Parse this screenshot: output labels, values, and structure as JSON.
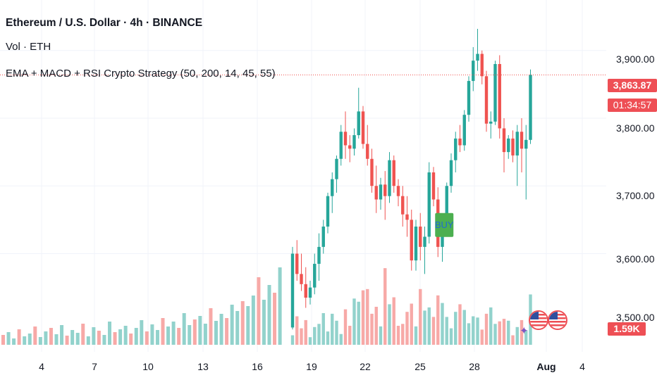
{
  "header": {
    "title": "Ethereum / U.S. Dollar · 4h · BINANCE",
    "volume_label": "Vol · ETH",
    "strategy_label": "EMA + MACD + RSI Crypto Strategy (50, 200, 14, 45, 55)"
  },
  "price_axis": {
    "ticks": [
      "3,900.00",
      "3,800.00",
      "3,700.00",
      "3,600.00",
      "3,500.00"
    ],
    "last_price": "3,863.87",
    "countdown": "01:34:57",
    "volume_badge": "1.59K"
  },
  "time_axis": {
    "ticks": [
      "4",
      "7",
      "10",
      "13",
      "16",
      "19",
      "22",
      "25",
      "28",
      "Aug",
      "4"
    ]
  },
  "signal": {
    "label": "BUY",
    "color": "#4caf50"
  },
  "colors": {
    "up": "#26a69a",
    "down": "#ef5350",
    "up_volume": "#92d2cc",
    "down_volume": "#f7a9a7",
    "grid": "#f0f3fa"
  },
  "chart_data": {
    "type": "candlestick",
    "title": "Ethereum / U.S. Dollar · 4h · BINANCE",
    "ylim": [
      3480,
      3960
    ],
    "y_ticks": [
      3600,
      3700,
      3800,
      3900
    ],
    "x_ticks": [
      "4",
      "7",
      "10",
      "13",
      "16",
      "19",
      "22",
      "25",
      "28",
      "Aug",
      "4"
    ],
    "last_price": 3863.87,
    "series": [
      {
        "name": "price",
        "ohlc": [
          [
            3491,
            3610,
            3488,
            3600
          ],
          [
            3600,
            3620,
            3560,
            3570
          ],
          [
            3570,
            3600,
            3545,
            3555
          ],
          [
            3555,
            3580,
            3520,
            3535
          ],
          [
            3535,
            3560,
            3525,
            3550
          ],
          [
            3550,
            3600,
            3540,
            3585
          ],
          [
            3585,
            3630,
            3560,
            3610
          ],
          [
            3610,
            3650,
            3600,
            3640
          ],
          [
            3640,
            3690,
            3630,
            3685
          ],
          [
            3685,
            3720,
            3660,
            3710
          ],
          [
            3710,
            3745,
            3690,
            3740
          ],
          [
            3740,
            3790,
            3730,
            3780
          ],
          [
            3780,
            3810,
            3740,
            3760
          ],
          [
            3760,
            3775,
            3735,
            3755
          ],
          [
            3755,
            3785,
            3745,
            3775
          ],
          [
            3775,
            3845,
            3770,
            3810
          ],
          [
            3810,
            3818,
            3755,
            3762
          ],
          [
            3762,
            3790,
            3730,
            3740
          ],
          [
            3740,
            3755,
            3690,
            3700
          ],
          [
            3700,
            3730,
            3660,
            3680
          ],
          [
            3680,
            3712,
            3665,
            3702
          ],
          [
            3702,
            3722,
            3650,
            3685
          ],
          [
            3685,
            3750,
            3675,
            3738
          ],
          [
            3738,
            3745,
            3690,
            3700
          ],
          [
            3700,
            3710,
            3670,
            3685
          ],
          [
            3685,
            3700,
            3640,
            3658
          ],
          [
            3658,
            3685,
            3625,
            3650
          ],
          [
            3650,
            3665,
            3575,
            3590
          ],
          [
            3590,
            3650,
            3575,
            3640
          ],
          [
            3640,
            3660,
            3590,
            3610
          ],
          [
            3610,
            3640,
            3570,
            3625
          ],
          [
            3625,
            3735,
            3615,
            3720
          ],
          [
            3720,
            3728,
            3670,
            3680
          ],
          [
            3680,
            3698,
            3595,
            3610
          ],
          [
            3610,
            3650,
            3588,
            3640
          ],
          [
            3640,
            3705,
            3630,
            3700
          ],
          [
            3700,
            3748,
            3690,
            3738
          ],
          [
            3738,
            3780,
            3720,
            3770
          ],
          [
            3770,
            3790,
            3750,
            3760
          ],
          [
            3760,
            3812,
            3752,
            3805
          ],
          [
            3805,
            3862,
            3795,
            3855
          ],
          [
            3855,
            3905,
            3840,
            3885
          ],
          [
            3885,
            3932,
            3870,
            3895
          ],
          [
            3895,
            3900,
            3850,
            3862
          ],
          [
            3862,
            3870,
            3780,
            3792
          ],
          [
            3792,
            3810,
            3770,
            3795
          ],
          [
            3795,
            3885,
            3790,
            3880
          ],
          [
            3880,
            3893,
            3770,
            3785
          ],
          [
            3785,
            3800,
            3720,
            3750
          ],
          [
            3750,
            3775,
            3740,
            3770
          ],
          [
            3770,
            3782,
            3735,
            3745
          ],
          [
            3745,
            3790,
            3700,
            3780
          ],
          [
            3780,
            3800,
            3720,
            3755
          ],
          [
            3755,
            3790,
            3680,
            3768
          ],
          [
            3768,
            3872,
            3762,
            3864
          ]
        ]
      },
      {
        "name": "Vol · ETH",
        "values": [
          300,
          900,
          520,
          780,
          240,
          560,
          660,
          1000,
          420,
          980,
          760,
          340,
          1120,
          600,
          1460,
          1360,
          1720,
          1760,
          980,
          1200,
          580,
          2420,
          1280,
          1500,
          600,
          660,
          1040,
          1300,
          580,
          1760,
          1080,
          1180,
          880,
          1560,
          1320,
          880,
          520,
          1040,
          1280,
          1100,
          680,
          900,
          860,
          480,
          980,
          1180,
          660,
          740,
          820,
          760,
          300,
          560,
          780,
          460,
          1590
        ]
      }
    ]
  }
}
